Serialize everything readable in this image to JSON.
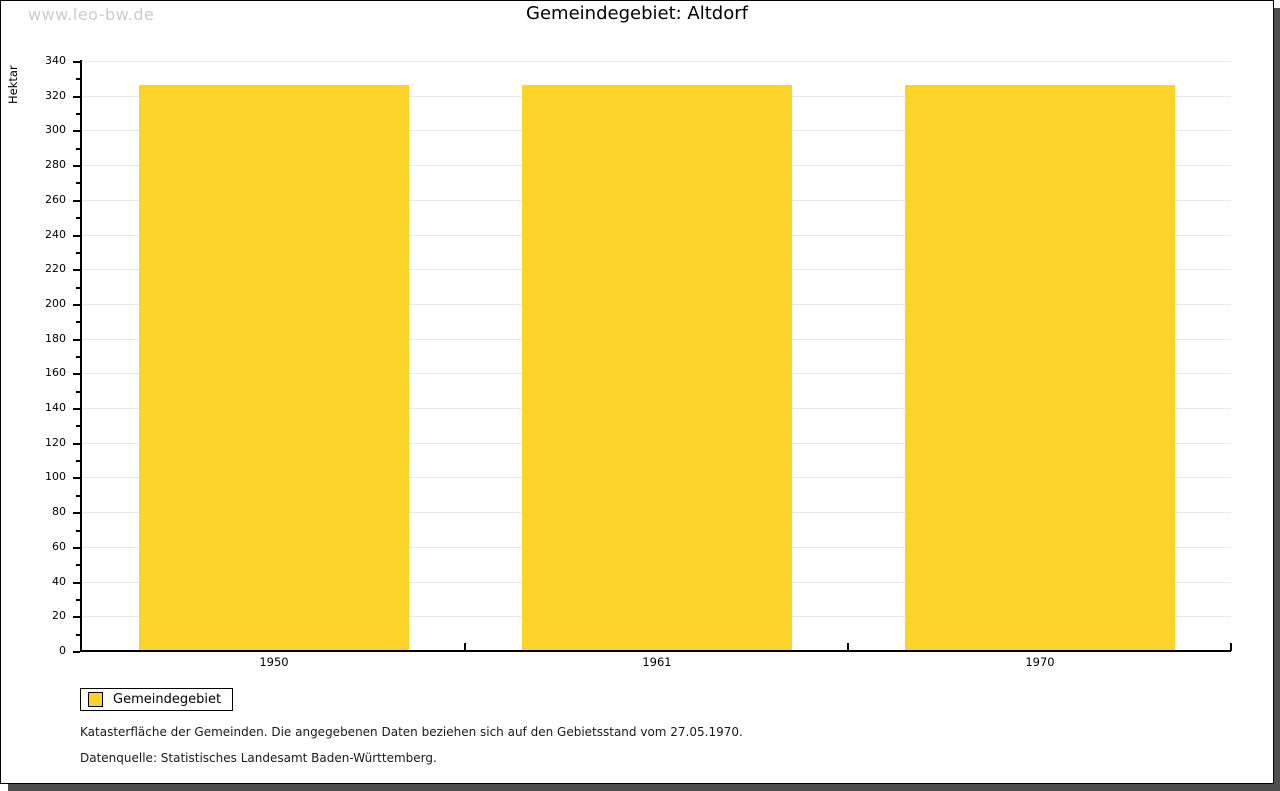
{
  "watermark": "www.leo-bw.de",
  "title": "Gemeindegebiet: Altdorf",
  "chart_data": {
    "type": "bar",
    "title": "Gemeindegebiet: Altdorf",
    "categories": [
      "1950",
      "1961",
      "1970"
    ],
    "series": [
      {
        "name": "Gemeindegebiet",
        "values": [
          326,
          326,
          326
        ],
        "color": "#fcd32b"
      }
    ],
    "xlabel": "",
    "ylabel": "Hektar",
    "ylim": [
      0,
      340
    ],
    "ytick_step": 20,
    "yminortick_step": 10,
    "grid": true,
    "legend_position": "bottom-left"
  },
  "legend": {
    "label": "Gemeindegebiet",
    "swatch_color": "#fcd32b"
  },
  "footer": {
    "line1": "Katasterfläche der Gemeinden. Die angegebenen Daten beziehen sich auf den Gebietsstand vom 27.05.1970.",
    "line2": "Datenquelle: Statistisches Landesamt Baden-Württemberg."
  },
  "colors": {
    "bar": "#fcd32b",
    "grid": "#e9e9e9",
    "axis": "#000000",
    "shadow": "#4d4d4d",
    "watermark": "#cccccc"
  }
}
